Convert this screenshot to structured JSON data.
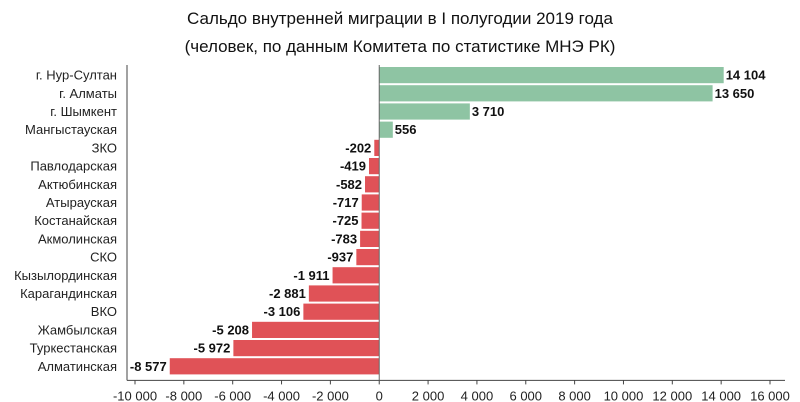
{
  "chart_data": {
    "type": "bar",
    "orientation": "horizontal",
    "title": "Сальдо внутренней миграции в I полугодии 2019 года",
    "subtitle": "(человек, по данным Комитета по статистике МНЭ РК)",
    "xlim": [
      -10000,
      16000
    ],
    "categories": [
      "г. Нур-Султан",
      "г. Алматы",
      "г. Шымкент",
      "Мангыстауская",
      "ЗКО",
      "Павлодарская",
      "Актюбинская",
      "Атырауская",
      "Костанайская",
      "Акмолинская",
      "СКО",
      "Кызылординская",
      "Карагандинская",
      "ВКО",
      "Жамбылская",
      "Туркестанская",
      "Алматинская"
    ],
    "values": [
      14104,
      13650,
      3710,
      556,
      -202,
      -419,
      -582,
      -717,
      -725,
      -783,
      -937,
      -1911,
      -2881,
      -3106,
      -5208,
      -5972,
      -8577
    ],
    "value_labels": [
      "14 104",
      "13 650",
      "3 710",
      "556",
      "-202",
      "-419",
      "-582",
      "-717",
      "-725",
      "-783",
      "-937",
      "-1 911",
      "-2 881",
      "-3 106",
      "-5 208",
      "-5 972",
      "-8 577"
    ],
    "x_ticks": [
      -10000,
      -8000,
      -6000,
      -4000,
      -2000,
      0,
      2000,
      4000,
      6000,
      8000,
      10000,
      12000,
      14000,
      16000
    ],
    "x_tick_labels": [
      "-10 000",
      "-8 000",
      "-6 000",
      "-4 000",
      "-2 000",
      "0",
      "2 000",
      "4 000",
      "6 000",
      "8 000",
      "10 000",
      "12 000",
      "14 000",
      "16 000"
    ],
    "colors": {
      "positive": "#8ec4a3",
      "negative": "#e05257"
    }
  }
}
